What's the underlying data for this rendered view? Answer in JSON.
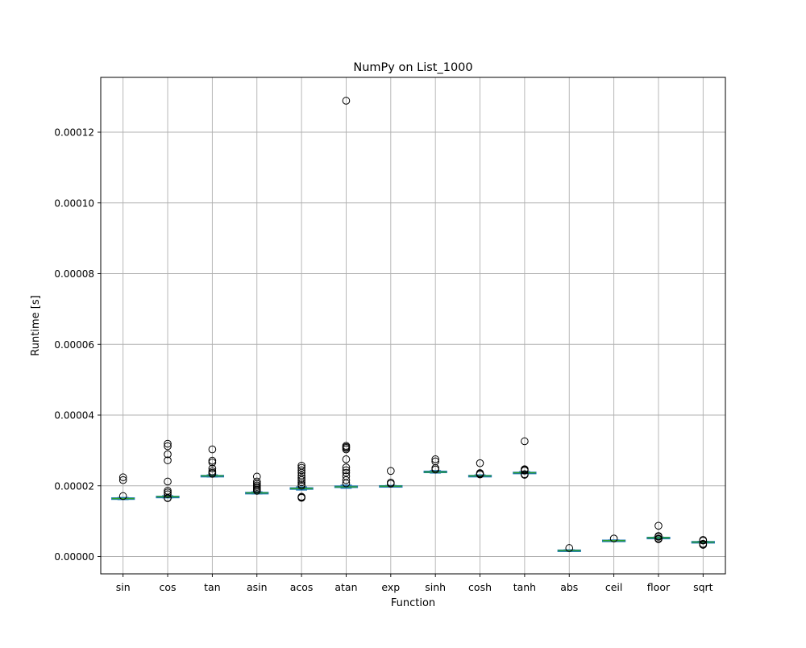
{
  "chart_data": {
    "type": "box",
    "title": "NumPy on List_1000",
    "xlabel": "Function",
    "ylabel": "Runtime [s]",
    "categories": [
      "sin",
      "cos",
      "tan",
      "asin",
      "acos",
      "atan",
      "exp",
      "sinh",
      "cosh",
      "tanh",
      "abs",
      "ceil",
      "floor",
      "sqrt"
    ],
    "ylim": [
      -4.9e-06,
      0.0001355
    ],
    "yticks": [
      0,
      2e-05,
      4e-05,
      6e-05,
      8e-05,
      0.0001,
      0.00012
    ],
    "ytick_labels": [
      "0.00000",
      "0.00002",
      "0.00004",
      "0.00006",
      "0.00008",
      "0.00010",
      "0.00012"
    ],
    "grid": true,
    "colors": {
      "box": "#1f77b4",
      "median": "#2ca02c",
      "grid": "#b0b0b0"
    },
    "boxes": [
      {
        "name": "sin",
        "q1": 1.625e-05,
        "median": 1.64e-05,
        "q3": 1.655e-05,
        "whislo": 1.61e-05,
        "whishi": 1.67e-05,
        "fliers": [
          2.24e-05,
          2.16e-05,
          1.71e-05
        ]
      },
      {
        "name": "cos",
        "q1": 1.68e-05,
        "median": 1.69e-05,
        "q3": 1.7e-05,
        "whislo": 1.66e-05,
        "whishi": 1.72e-05,
        "fliers": [
          3.19e-05,
          3.12e-05,
          2.89e-05,
          2.72e-05,
          2.12e-05,
          1.86e-05,
          1.81e-05,
          1.76e-05,
          1.66e-05,
          1.65e-05
        ]
      },
      {
        "name": "tan",
        "q1": 2.27e-05,
        "median": 2.28e-05,
        "q3": 2.29e-05,
        "whislo": 2.25e-05,
        "whishi": 2.31e-05,
        "fliers": [
          3.03e-05,
          2.71e-05,
          2.66e-05,
          2.49e-05,
          2.41e-05,
          2.37e-05,
          2.34e-05
        ]
      },
      {
        "name": "asin",
        "q1": 1.79e-05,
        "median": 1.8e-05,
        "q3": 1.81e-05,
        "whislo": 1.77e-05,
        "whishi": 1.83e-05,
        "fliers": [
          2.26e-05,
          2.12e-05,
          2.06e-05,
          2.01e-05,
          1.97e-05,
          1.93e-05,
          1.89e-05,
          1.86e-05
        ]
      },
      {
        "name": "acos",
        "q1": 1.91e-05,
        "median": 1.92e-05,
        "q3": 1.94e-05,
        "whislo": 1.88e-05,
        "whishi": 1.97e-05,
        "fliers": [
          2.57e-05,
          2.51e-05,
          2.44e-05,
          2.37e-05,
          2.29e-05,
          2.22e-05,
          2.16e-05,
          2.1e-05,
          2.04e-05,
          2e-05,
          1.69e-05,
          1.67e-05,
          1.66e-05
        ]
      },
      {
        "name": "atan",
        "q1": 1.96e-05,
        "median": 1.97e-05,
        "q3": 1.99e-05,
        "whislo": 1.93e-05,
        "whishi": 2.02e-05,
        "fliers": [
          0.0001289,
          3.13e-05,
          3.1e-05,
          3.07e-05,
          3.03e-05,
          2.75e-05,
          2.52e-05,
          2.44e-05,
          2.37e-05,
          2.27e-05,
          2.16e-05,
          2.07e-05
        ]
      },
      {
        "name": "exp",
        "q1": 1.98e-05,
        "median": 1.99e-05,
        "q3": 2e-05,
        "whislo": 1.97e-05,
        "whishi": 2.01e-05,
        "fliers": [
          2.42e-05,
          2.09e-05,
          2.06e-05
        ]
      },
      {
        "name": "sinh",
        "q1": 2.38e-05,
        "median": 2.39e-05,
        "q3": 2.41e-05,
        "whislo": 2.36e-05,
        "whishi": 2.43e-05,
        "fliers": [
          2.75e-05,
          2.69e-05,
          2.5e-05,
          2.46e-05
        ]
      },
      {
        "name": "cosh",
        "q1": 2.27e-05,
        "median": 2.28e-05,
        "q3": 2.29e-05,
        "whislo": 2.26e-05,
        "whishi": 2.31e-05,
        "fliers": [
          2.64e-05,
          2.36e-05,
          2.34e-05,
          2.32e-05
        ]
      },
      {
        "name": "tanh",
        "q1": 2.36e-05,
        "median": 2.37e-05,
        "q3": 2.38e-05,
        "whislo": 2.35e-05,
        "whishi": 2.4e-05,
        "fliers": [
          3.26e-05,
          2.47e-05,
          2.45e-05,
          2.43e-05,
          2.33e-05,
          2.31e-05
        ]
      },
      {
        "name": "abs",
        "q1": 1.6e-06,
        "median": 1.7e-06,
        "q3": 1.8e-06,
        "whislo": 1.5e-06,
        "whishi": 1.9e-06,
        "fliers": [
          2.4e-06
        ]
      },
      {
        "name": "ceil",
        "q1": 4.4e-06,
        "median": 4.5e-06,
        "q3": 4.6e-06,
        "whislo": 4.3e-06,
        "whishi": 4.7e-06,
        "fliers": [
          5.1e-06
        ]
      },
      {
        "name": "floor",
        "q1": 5.2e-06,
        "median": 5.3e-06,
        "q3": 5.4e-06,
        "whislo": 5.1e-06,
        "whishi": 5.5e-06,
        "fliers": [
          8.7e-06,
          5.8e-06,
          5.6e-06,
          5.1e-06,
          5e-06,
          4.9e-06
        ]
      },
      {
        "name": "sqrt",
        "q1": 4e-06,
        "median": 4.1e-06,
        "q3": 4.2e-06,
        "whislo": 3.9e-06,
        "whishi": 4.3e-06,
        "fliers": [
          4.7e-06,
          4.5e-06,
          3.6e-06,
          3.4e-06,
          3.3e-06
        ]
      }
    ]
  }
}
